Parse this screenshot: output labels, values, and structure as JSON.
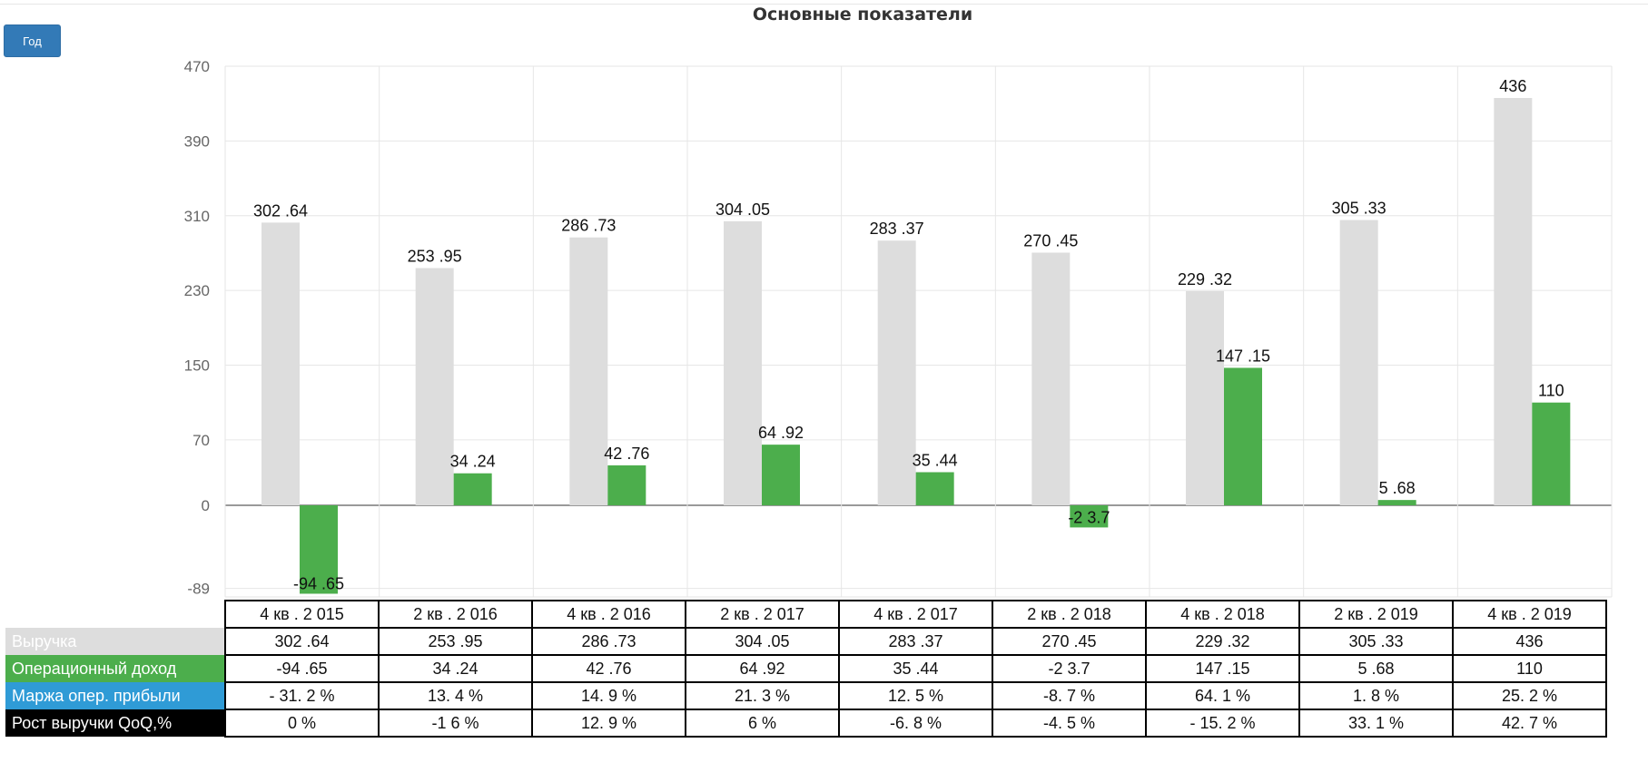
{
  "button": {
    "label": "Год"
  },
  "chart_data": {
    "type": "bar",
    "title": "Основные показатели",
    "categories": [
      "4 кв . 2 015",
      "2 кв . 2 016",
      "4 кв . 2 016",
      "2 кв . 2 017",
      "4 кв . 2 017",
      "2 кв . 2 018",
      "4 кв . 2 018",
      "2 кв . 2 019",
      "4 кв . 2 019"
    ],
    "series": [
      {
        "name": "Выручка",
        "color": "#dddddd",
        "values": [
          302.64,
          253.95,
          286.73,
          304.05,
          283.37,
          270.45,
          229.32,
          305.33,
          436
        ],
        "labels": [
          "302 .64",
          "253 .95",
          "286 .73",
          "304 .05",
          "283 .37",
          "270 .45",
          "229 .32",
          "305 .33",
          "436"
        ]
      },
      {
        "name": "Операционный доход",
        "color": "#4cae4c",
        "values": [
          -94.65,
          34.24,
          42.76,
          64.92,
          35.44,
          -23.7,
          147.15,
          5.68,
          110
        ],
        "labels": [
          "-94 .65",
          "34 .24",
          "42 .76",
          "64 .92",
          "35 .44",
          "-2 3.7",
          "147 .15",
          "5 .68",
          "110"
        ]
      }
    ],
    "yticks": [
      "470",
      "390",
      "310",
      "230",
      "150",
      "70",
      "0",
      "-89"
    ],
    "ylim": [
      -99,
      470
    ],
    "grid": true
  },
  "table": {
    "rows": [
      {
        "label": "Выручка",
        "bg": "#dddddd",
        "fg": "#ffffff",
        "cells": [
          "302 .64",
          "253 .95",
          "286 .73",
          "304 .05",
          "283 .37",
          "270 .45",
          "229 .32",
          "305 .33",
          "436"
        ]
      },
      {
        "label": "Операционный доход",
        "bg": "#4cae4c",
        "fg": "#ffffff",
        "cells": [
          "-94 .65",
          "34 .24",
          "42 .76",
          "64 .92",
          "35 .44",
          "-2 3.7",
          "147 .15",
          "5 .68",
          "110"
        ]
      },
      {
        "label": "Маржа опер. прибыли",
        "bg": "#2f9bd6",
        "fg": "#ffffff",
        "cells": [
          "- 31. 2 %",
          "13. 4 %",
          "14. 9 %",
          "21. 3 %",
          "12. 5 %",
          "-8. 7 %",
          "64. 1 %",
          "1. 8 %",
          "25. 2 %"
        ]
      },
      {
        "label": "Рост выручки QoQ,%",
        "bg": "#000000",
        "fg": "#ffffff",
        "cells": [
          "0 %",
          "-1 6 %",
          "12. 9 %",
          "6 %",
          "-6. 8 %",
          "-4. 5 %",
          "- 15. 2 %",
          "33. 1 %",
          "42. 7 %"
        ]
      }
    ]
  }
}
